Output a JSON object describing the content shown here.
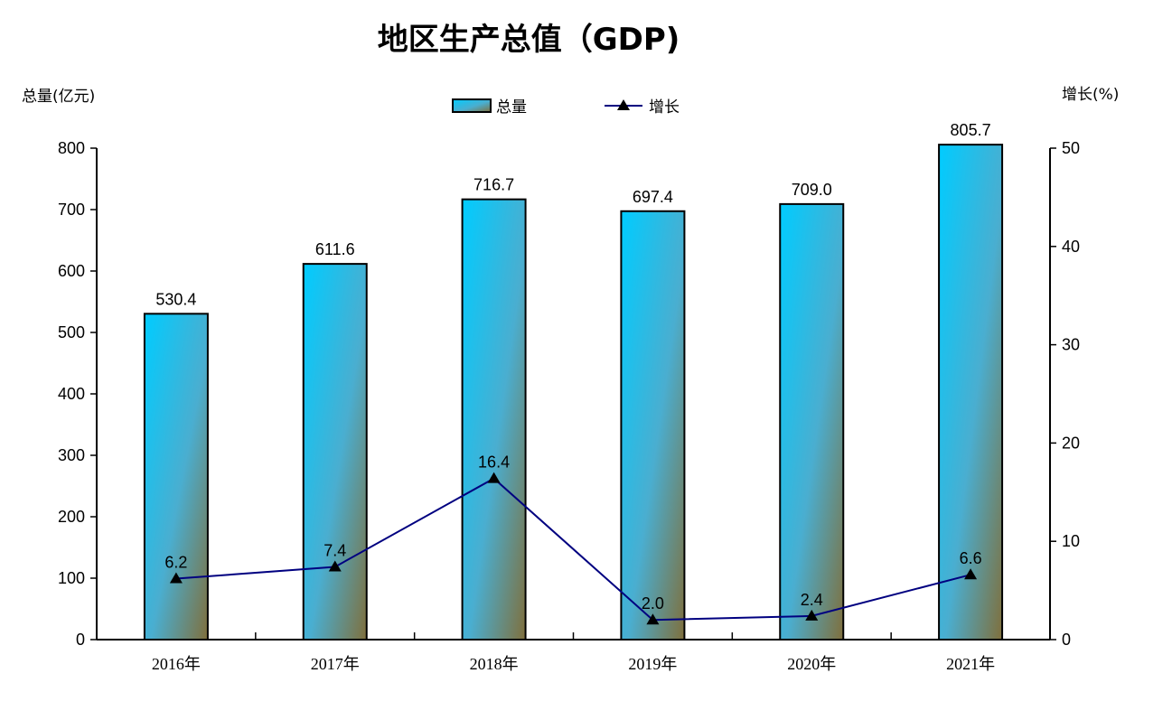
{
  "chart_data": {
    "type": "bar+line",
    "title": "地区生产总值（GDP)",
    "categories": [
      "2016年",
      "2017年",
      "2018年",
      "2019年",
      "2020年",
      "2021年"
    ],
    "series": [
      {
        "name": "总量",
        "type": "bar",
        "axis": "left",
        "values": [
          530.4,
          611.6,
          716.7,
          697.4,
          709.0,
          805.7
        ],
        "labels": [
          "530.4",
          "611.6",
          "716.7",
          "697.4",
          "709.0",
          "805.7"
        ]
      },
      {
        "name": "增长",
        "type": "line",
        "axis": "right",
        "marker": "triangle",
        "values": [
          6.2,
          7.4,
          16.4,
          2.0,
          2.4,
          6.6
        ],
        "labels": [
          "6.2",
          "7.4",
          "16.4",
          "2.0",
          "2.4",
          "6.6"
        ]
      }
    ],
    "ylabel_left": "总量(亿元)",
    "ylabel_right": "增长(%)",
    "ylim_left": [
      0,
      800
    ],
    "yticks_left": [
      "0",
      "100",
      "200",
      "300",
      "400",
      "500",
      "600",
      "700",
      "800"
    ],
    "ylim_right": [
      0,
      50
    ],
    "yticks_right": [
      "0",
      "10",
      "20",
      "30",
      "40",
      "50"
    ],
    "grid": false,
    "legend": "top-center",
    "colors": {
      "bar_top": "#00ccff",
      "bar_bottom": "#806f3c",
      "line": "#000080",
      "marker": "#000000"
    }
  }
}
